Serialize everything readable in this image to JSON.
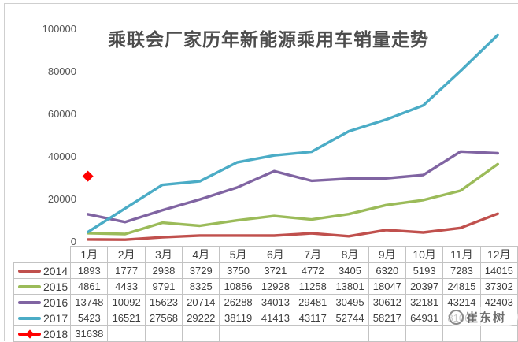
{
  "title": "乘联会厂家历年新能源乘用车销量走势",
  "watermark": {
    "text": "崔东树"
  },
  "y_axis": {
    "labels": [
      "100000",
      "80000",
      "60000",
      "40000",
      "20000",
      "0"
    ]
  },
  "table": {
    "month_headers": [
      "1月",
      "2月",
      "3月",
      "4月",
      "5月",
      "6月",
      "7月",
      "8月",
      "9月",
      "10月",
      "11月",
      "12月"
    ],
    "rows": [
      {
        "year": "2014",
        "color": "#C0504D",
        "marker": "line",
        "values": [
          "1893",
          "1777",
          "2938",
          "3729",
          "3750",
          "3721",
          "4772",
          "3405",
          "6320",
          "5193",
          "7283",
          "14015"
        ]
      },
      {
        "year": "2015",
        "color": "#9BBB59",
        "marker": "line",
        "values": [
          "4861",
          "4433",
          "9791",
          "8325",
          "10856",
          "12928",
          "11258",
          "13801",
          "18047",
          "20397",
          "24815",
          "37302"
        ]
      },
      {
        "year": "2016",
        "color": "#8064A2",
        "marker": "line",
        "values": [
          "13748",
          "10092",
          "15623",
          "20714",
          "26288",
          "34013",
          "29481",
          "30495",
          "30612",
          "32181",
          "43214",
          "42403"
        ]
      },
      {
        "year": "2017",
        "color": "#4BACC6",
        "marker": "line",
        "values": [
          "5423",
          "16521",
          "27568",
          "29222",
          "38119",
          "41413",
          "43117",
          "52744",
          "58217",
          "64931",
          "81067",
          ""
        ]
      },
      {
        "year": "2018",
        "color": "#FF0000",
        "marker": "line-diamond",
        "values": [
          "31638",
          "",
          "",
          "",
          "",
          "",
          "",
          "",
          "",
          "",
          "",
          ""
        ]
      }
    ]
  },
  "chart_data": {
    "type": "line",
    "title": "乘联会厂家历年新能源乘用车销量走势",
    "categories": [
      "1月",
      "2月",
      "3月",
      "4月",
      "5月",
      "6月",
      "7月",
      "8月",
      "9月",
      "10月",
      "11月",
      "12月"
    ],
    "series": [
      {
        "name": "2014",
        "color": "#C0504D",
        "marker": "none",
        "values": [
          1893,
          1777,
          2938,
          3729,
          3750,
          3721,
          4772,
          3405,
          6320,
          5193,
          7283,
          14015
        ]
      },
      {
        "name": "2015",
        "color": "#9BBB59",
        "marker": "none",
        "values": [
          4861,
          4433,
          9791,
          8325,
          10856,
          12928,
          11258,
          13801,
          18047,
          20397,
          24815,
          37302
        ]
      },
      {
        "name": "2016",
        "color": "#8064A2",
        "marker": "none",
        "values": [
          13748,
          10092,
          15623,
          20714,
          26288,
          34013,
          29481,
          30495,
          30612,
          32181,
          43214,
          42403
        ]
      },
      {
        "name": "2017",
        "color": "#4BACC6",
        "marker": "none",
        "values": [
          5423,
          16521,
          27568,
          29222,
          38119,
          41413,
          43117,
          52744,
          58217,
          64931,
          81067,
          98000
        ]
      },
      {
        "name": "2018",
        "color": "#FF0000",
        "marker": "diamond",
        "values": [
          31638
        ]
      }
    ],
    "xlabel": "",
    "ylabel": "",
    "ylim": [
      0,
      100000
    ],
    "yticks": [
      0,
      20000,
      40000,
      60000,
      80000,
      100000
    ],
    "grid": false,
    "legend_position": "table-left"
  }
}
